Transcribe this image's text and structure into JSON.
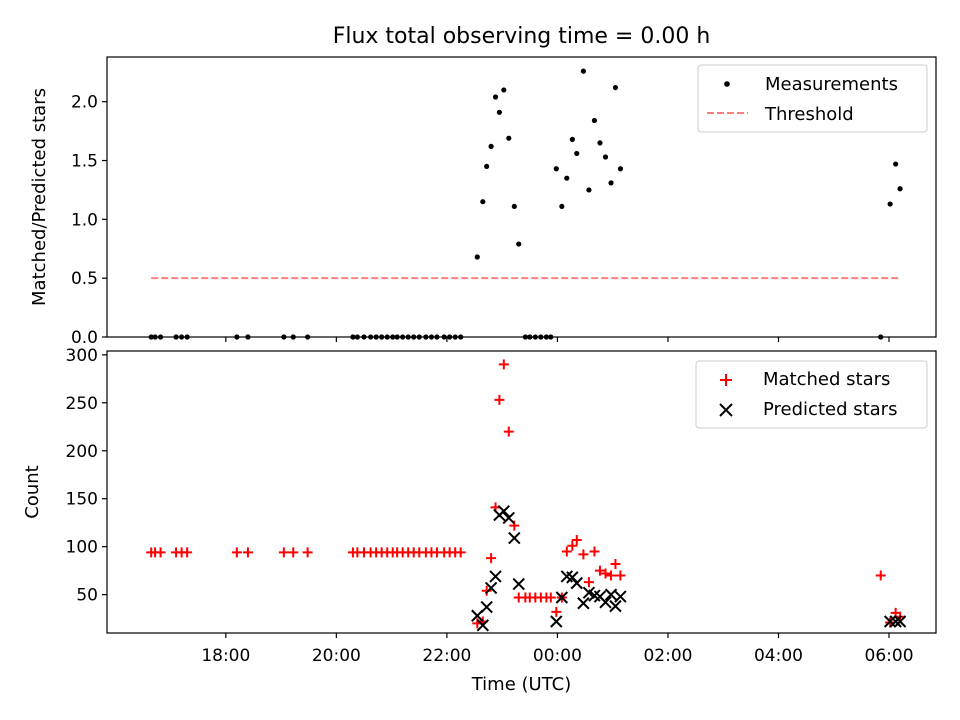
{
  "chart_data": [
    {
      "type": "scatter",
      "title": "Flux total observing time = 0.00 h",
      "xlabel": "",
      "ylabel": "Matched/Predicted stars",
      "xlim": [
        15.85,
        30.85
      ],
      "ylim": [
        0,
        2.38
      ],
      "yticks": [
        0.0,
        0.5,
        1.0,
        1.5,
        2.0
      ],
      "ytick_labels": [
        "0.0",
        "0.5",
        "1.0",
        "1.5",
        "2.0"
      ],
      "legend": {
        "position": "top-right",
        "entries": [
          "Measurements",
          "Threshold"
        ]
      },
      "series": [
        {
          "name": "Measurements",
          "marker": "dot",
          "color": "#000000",
          "points": [
            [
              16.65,
              0
            ],
            [
              16.72,
              0
            ],
            [
              16.82,
              0
            ],
            [
              17.1,
              0
            ],
            [
              17.2,
              0
            ],
            [
              17.3,
              0
            ],
            [
              18.2,
              0
            ],
            [
              18.4,
              0
            ],
            [
              19.05,
              0
            ],
            [
              19.22,
              0
            ],
            [
              19.48,
              0
            ],
            [
              20.3,
              0
            ],
            [
              20.38,
              0
            ],
            [
              20.5,
              0
            ],
            [
              20.62,
              0
            ],
            [
              20.72,
              0
            ],
            [
              20.82,
              0
            ],
            [
              20.92,
              0
            ],
            [
              21.02,
              0
            ],
            [
              21.1,
              0
            ],
            [
              21.2,
              0
            ],
            [
              21.3,
              0
            ],
            [
              21.4,
              0
            ],
            [
              21.5,
              0
            ],
            [
              21.62,
              0
            ],
            [
              21.72,
              0
            ],
            [
              21.82,
              0
            ],
            [
              21.95,
              0
            ],
            [
              22.05,
              0
            ],
            [
              22.15,
              0
            ],
            [
              22.25,
              0
            ],
            [
              23.42,
              0
            ],
            [
              23.5,
              0
            ],
            [
              23.6,
              0
            ],
            [
              23.7,
              0
            ],
            [
              23.8,
              0
            ],
            [
              23.88,
              0
            ],
            [
              29.85,
              0
            ],
            [
              22.55,
              0.68
            ],
            [
              22.65,
              1.15
            ],
            [
              22.72,
              1.45
            ],
            [
              22.8,
              1.62
            ],
            [
              22.88,
              2.04
            ],
            [
              22.95,
              1.91
            ],
            [
              23.03,
              2.1
            ],
            [
              23.12,
              1.69
            ],
            [
              23.22,
              1.11
            ],
            [
              23.3,
              0.79
            ],
            [
              23.98,
              1.43
            ],
            [
              24.08,
              1.11
            ],
            [
              24.17,
              1.35
            ],
            [
              24.27,
              1.68
            ],
            [
              24.35,
              1.56
            ],
            [
              24.47,
              2.26
            ],
            [
              24.57,
              1.25
            ],
            [
              24.67,
              1.84
            ],
            [
              24.77,
              1.65
            ],
            [
              24.87,
              1.53
            ],
            [
              24.97,
              1.31
            ],
            [
              25.05,
              2.12
            ],
            [
              25.14,
              1.43
            ],
            [
              30.02,
              1.13
            ],
            [
              30.12,
              1.47
            ],
            [
              30.2,
              1.26
            ]
          ]
        },
        {
          "name": "Threshold",
          "marker": "dashed-line",
          "color": "#ff7f7f",
          "x": [
            16.65,
            30.2
          ],
          "y": [
            0.5,
            0.5
          ]
        }
      ]
    },
    {
      "type": "scatter",
      "title": "",
      "xlabel": "Time (UTC)",
      "ylabel": "Count",
      "xlim": [
        15.85,
        30.85
      ],
      "ylim": [
        10,
        304
      ],
      "yticks": [
        50,
        100,
        150,
        200,
        250,
        300
      ],
      "ytick_labels": [
        "50",
        "100",
        "150",
        "200",
        "250",
        "300"
      ],
      "xticks": [
        18,
        20,
        22,
        24,
        26,
        28,
        30
      ],
      "xtick_labels": [
        "18:00",
        "20:00",
        "22:00",
        "00:00",
        "02:00",
        "04:00",
        "06:00"
      ],
      "legend": {
        "position": "top-right",
        "entries": [
          "Matched stars",
          "Predicted stars"
        ]
      },
      "series": [
        {
          "name": "Matched stars",
          "marker": "plus",
          "color": "#ff0000",
          "points": [
            [
              16.65,
              94
            ],
            [
              16.72,
              94
            ],
            [
              16.82,
              94
            ],
            [
              17.1,
              94
            ],
            [
              17.2,
              94
            ],
            [
              17.3,
              94
            ],
            [
              18.2,
              94
            ],
            [
              18.4,
              94
            ],
            [
              19.05,
              94
            ],
            [
              19.22,
              94
            ],
            [
              19.48,
              94
            ],
            [
              20.3,
              94
            ],
            [
              20.38,
              94
            ],
            [
              20.5,
              94
            ],
            [
              20.62,
              94
            ],
            [
              20.72,
              94
            ],
            [
              20.82,
              94
            ],
            [
              20.92,
              94
            ],
            [
              21.02,
              94
            ],
            [
              21.1,
              94
            ],
            [
              21.2,
              94
            ],
            [
              21.3,
              94
            ],
            [
              21.4,
              94
            ],
            [
              21.5,
              94
            ],
            [
              21.62,
              94
            ],
            [
              21.72,
              94
            ],
            [
              21.82,
              94
            ],
            [
              21.95,
              94
            ],
            [
              22.05,
              94
            ],
            [
              22.15,
              94
            ],
            [
              22.25,
              94
            ],
            [
              22.55,
              20
            ],
            [
              22.65,
              22
            ],
            [
              22.72,
              54
            ],
            [
              22.8,
              88
            ],
            [
              22.88,
              141
            ],
            [
              22.95,
              253
            ],
            [
              23.03,
              290
            ],
            [
              23.12,
              220
            ],
            [
              23.22,
              122
            ],
            [
              23.3,
              47
            ],
            [
              23.42,
              47
            ],
            [
              23.5,
              47
            ],
            [
              23.6,
              47
            ],
            [
              23.7,
              47
            ],
            [
              23.8,
              47
            ],
            [
              23.88,
              47
            ],
            [
              23.98,
              32
            ],
            [
              24.08,
              47
            ],
            [
              24.17,
              95
            ],
            [
              24.27,
              101
            ],
            [
              24.35,
              107
            ],
            [
              24.47,
              92
            ],
            [
              24.57,
              63
            ],
            [
              24.67,
              95
            ],
            [
              24.77,
              75
            ],
            [
              24.87,
              72
            ],
            [
              24.97,
              70
            ],
            [
              25.05,
              82
            ],
            [
              25.14,
              70
            ],
            [
              29.85,
              70
            ],
            [
              30.02,
              21
            ],
            [
              30.12,
              31
            ],
            [
              30.2,
              27
            ]
          ]
        },
        {
          "name": "Predicted stars",
          "marker": "x",
          "color": "#000000",
          "points": [
            [
              22.55,
              28
            ],
            [
              22.65,
              18
            ],
            [
              22.72,
              37
            ],
            [
              22.8,
              57
            ],
            [
              22.88,
              69
            ],
            [
              22.95,
              133
            ],
            [
              23.03,
              137
            ],
            [
              23.12,
              130
            ],
            [
              23.22,
              109
            ],
            [
              23.3,
              61
            ],
            [
              23.98,
              22
            ],
            [
              24.08,
              47
            ],
            [
              24.17,
              69
            ],
            [
              24.27,
              68
            ],
            [
              24.35,
              62
            ],
            [
              24.47,
              41
            ],
            [
              24.57,
              52
            ],
            [
              24.67,
              49
            ],
            [
              24.77,
              48
            ],
            [
              24.87,
              42
            ],
            [
              24.97,
              50
            ],
            [
              25.05,
              38
            ],
            [
              25.14,
              48
            ],
            [
              30.02,
              22
            ],
            [
              30.12,
              22
            ],
            [
              30.2,
              22
            ]
          ]
        }
      ]
    }
  ],
  "icons": {
    "dot": "dot-marker-icon",
    "plus": "plus-marker-icon",
    "x": "x-marker-icon"
  }
}
